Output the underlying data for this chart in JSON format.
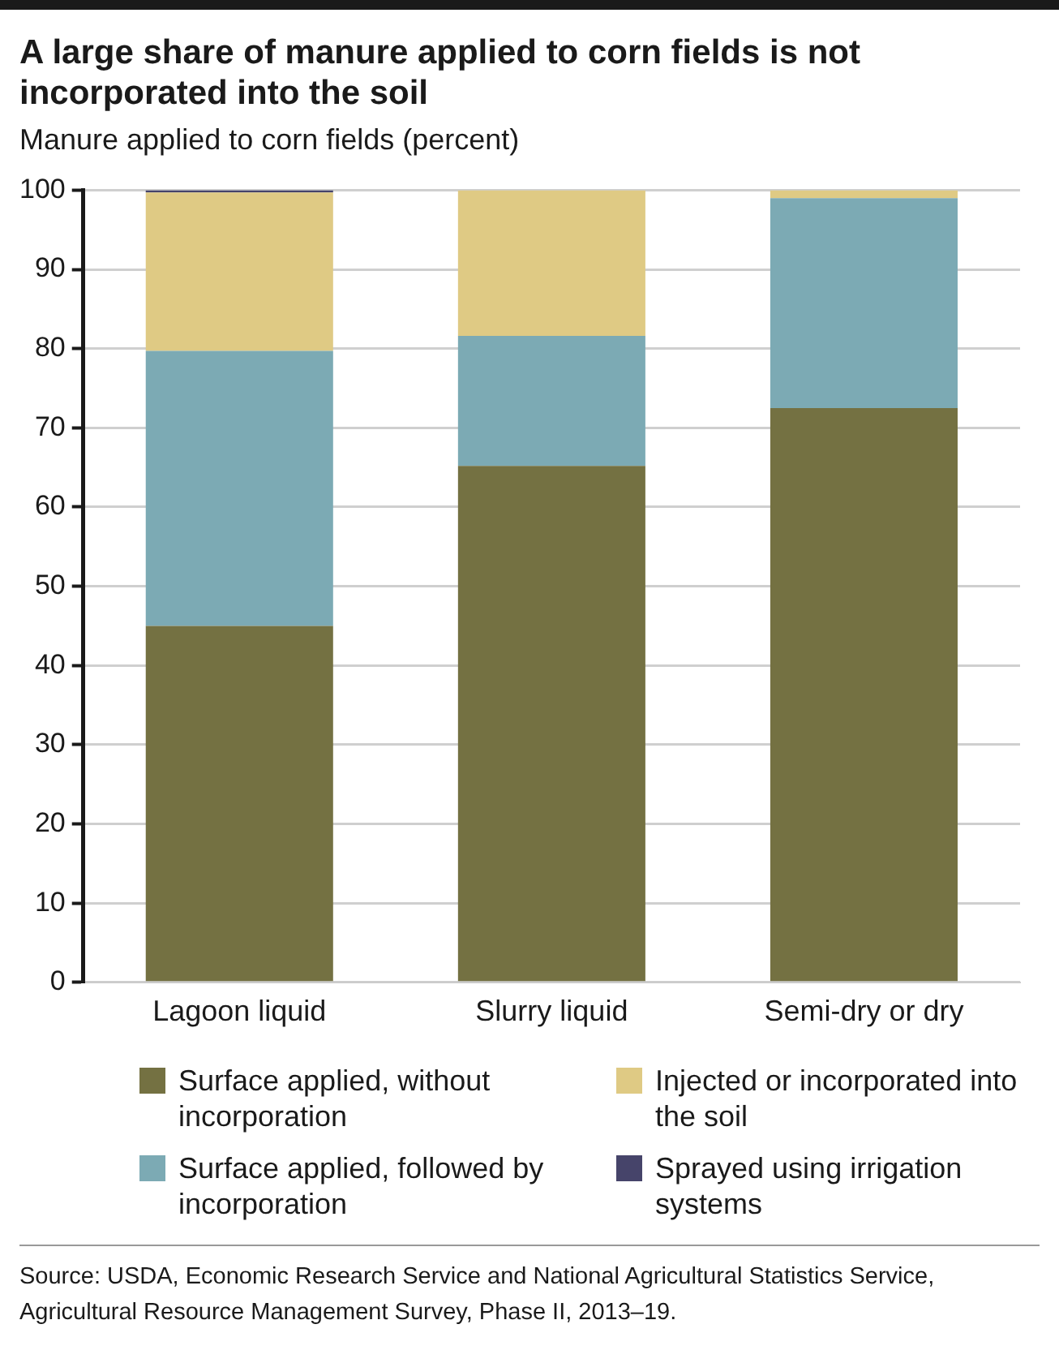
{
  "chart_data": {
    "type": "bar",
    "stacked": true,
    "title": "A large share of manure applied to corn fields is not incorporated into the soil",
    "subtitle": "Manure applied to corn fields (percent)",
    "categories": [
      "Lagoon liquid",
      "Slurry liquid",
      "Semi-dry or dry"
    ],
    "series": [
      {
        "name": "Surface applied, without incorporation",
        "color": "#747142",
        "values": [
          45,
          65.2,
          72.5
        ]
      },
      {
        "name": "Surface applied, followed by incorporation",
        "color": "#7caab4",
        "values": [
          34.7,
          16.4,
          26.5
        ]
      },
      {
        "name": "Injected or incorporated into the soil",
        "color": "#dfca84",
        "values": [
          20,
          18.4,
          1
        ]
      },
      {
        "name": "Sprayed using irrigation systems",
        "color": "#46446a",
        "values": [
          0.3,
          null,
          null
        ]
      }
    ],
    "ylim": [
      0,
      100
    ],
    "yticks": [
      0,
      10,
      20,
      30,
      40,
      50,
      60,
      70,
      80,
      90,
      100
    ],
    "grid": "y",
    "legend": "bottom",
    "annotations": [
      "Source: USDA, Economic Research Service and National Agricultural Statistics Service, Agricultural Resource Management Survey, Phase II, 2013–19."
    ]
  }
}
